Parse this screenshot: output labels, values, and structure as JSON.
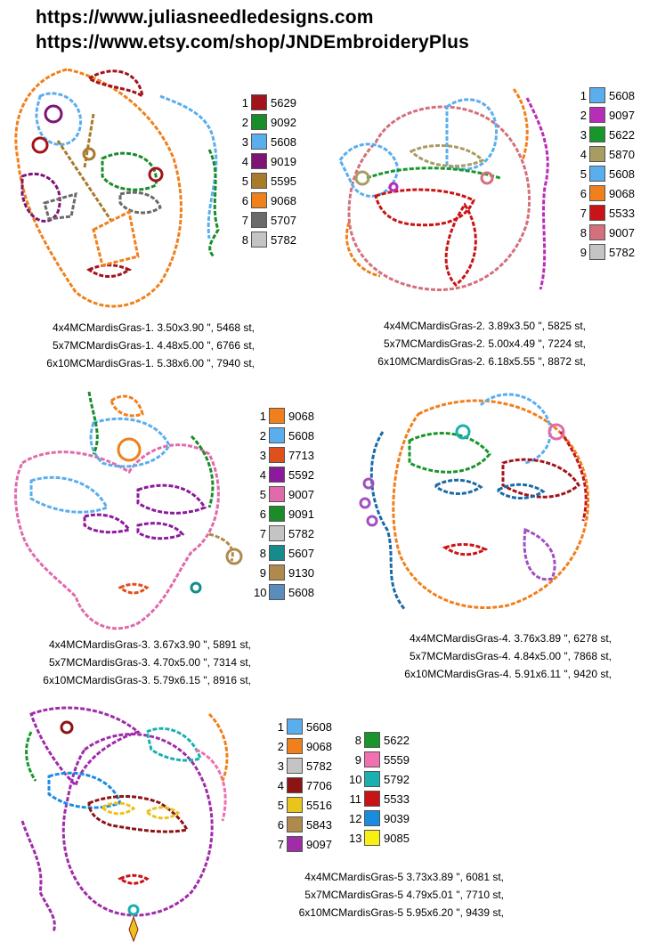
{
  "header": {
    "line1": "https://www.juliasneedledesigns.com",
    "line2": "https://www.etsy.com/shop/JNDEmbroideryPlus"
  },
  "designs": [
    {
      "info": [
        "4x4MCMardisGras-1. 3.50x3.90 \", 5468 st,",
        "5x7MCMardisGras-1. 4.48x5.00 \", 6766 st,",
        "6x10MCMardisGras-1. 5.38x6.00 \", 7940 st,"
      ],
      "threads": [
        {
          "n": "1",
          "code": "5629",
          "color": "#a3131b"
        },
        {
          "n": "2",
          "code": "9092",
          "color": "#1a8c2a"
        },
        {
          "n": "3",
          "code": "5608",
          "color": "#5aaeee"
        },
        {
          "n": "4",
          "code": "9019",
          "color": "#7e1474"
        },
        {
          "n": "5",
          "code": "5595",
          "color": "#a87a2c"
        },
        {
          "n": "6",
          "code": "9068",
          "color": "#f0801c"
        },
        {
          "n": "7",
          "code": "5707",
          "color": "#6a6a6a"
        },
        {
          "n": "8",
          "code": "5782",
          "color": "#c4c4c4"
        }
      ]
    },
    {
      "info": [
        "4x4MCMardisGras-2. 3.89x3.50 \", 5825 st,",
        "5x7MCMardisGras-2. 5.00x4.49 \", 7224 st,",
        "6x10MCMardisGras-2. 6.18x5.55 \", 8872 st,"
      ],
      "threads": [
        {
          "n": "1",
          "code": "5608",
          "color": "#5aaeee"
        },
        {
          "n": "2",
          "code": "9097",
          "color": "#b82db8"
        },
        {
          "n": "3",
          "code": "5622",
          "color": "#18962c"
        },
        {
          "n": "4",
          "code": "5870",
          "color": "#a89c62"
        },
        {
          "n": "5",
          "code": "5608",
          "color": "#5aaeee"
        },
        {
          "n": "6",
          "code": "9068",
          "color": "#f0801c"
        },
        {
          "n": "7",
          "code": "5533",
          "color": "#c81416"
        },
        {
          "n": "8",
          "code": "9007",
          "color": "#d4707c"
        },
        {
          "n": "9",
          "code": "5782",
          "color": "#c4c4c4"
        }
      ]
    },
    {
      "info": [
        "4x4MCMardisGras-3. 3.67x3.90 \", 5891 st,",
        "5x7MCMardisGras-3. 4.70x5.00 \", 7314 st,",
        "6x10MCMardisGras-3. 5.79x6.15 \", 8916 st,"
      ],
      "threads": [
        {
          "n": "1",
          "code": "9068",
          "color": "#f0801c"
        },
        {
          "n": "2",
          "code": "5608",
          "color": "#5aaeee"
        },
        {
          "n": "3",
          "code": "7713",
          "color": "#e0501c"
        },
        {
          "n": "4",
          "code": "5592",
          "color": "#8c1a9c"
        },
        {
          "n": "5",
          "code": "9007",
          "color": "#e06aac"
        },
        {
          "n": "6",
          "code": "9091",
          "color": "#1a8c2a"
        },
        {
          "n": "7",
          "code": "5782",
          "color": "#c4c4c4"
        },
        {
          "n": "8",
          "code": "5607",
          "color": "#148c8c"
        },
        {
          "n": "9",
          "code": "9130",
          "color": "#b08a4c"
        },
        {
          "n": "10",
          "code": "5608",
          "color": "#5a8cbc"
        }
      ]
    },
    {
      "info": [
        "4x4MCMardisGras-4. 3.76x3.89 \", 6278 st,",
        "5x7MCMardisGras-4. 4.84x5.00 \", 7868 st,",
        "6x10MCMardisGras-4. 5.91x6.11 \", 9420 st,"
      ],
      "threads": []
    },
    {
      "info": [
        "4x4MCMardisGras-5 3.73x3.89 \", 6081 st,",
        "5x7MCMardisGras-5 4.79x5.01 \", 7710 st,",
        "6x10MCMardisGras-5 5.95x6.20 \", 9439 st,"
      ],
      "threads": [
        {
          "n": "1",
          "code": "5608",
          "color": "#5aaeee"
        },
        {
          "n": "2",
          "code": "9068",
          "color": "#f0801c"
        },
        {
          "n": "3",
          "code": "5782",
          "color": "#c4c4c4"
        },
        {
          "n": "4",
          "code": "7706",
          "color": "#8c1414"
        },
        {
          "n": "5",
          "code": "5516",
          "color": "#e8c41c"
        },
        {
          "n": "6",
          "code": "5843",
          "color": "#b08a4c"
        },
        {
          "n": "7",
          "code": "9097",
          "color": "#a02ca8"
        },
        {
          "n": "8",
          "code": "5622",
          "color": "#18962c"
        },
        {
          "n": "9",
          "code": "5559",
          "color": "#f070b0"
        },
        {
          "n": "10",
          "code": "5792",
          "color": "#1ab0b0"
        },
        {
          "n": "11",
          "code": "5533",
          "color": "#c81416"
        },
        {
          "n": "12",
          "code": "9039",
          "color": "#1a8ce0"
        },
        {
          "n": "13",
          "code": "9085",
          "color": "#f8f010"
        }
      ]
    }
  ]
}
